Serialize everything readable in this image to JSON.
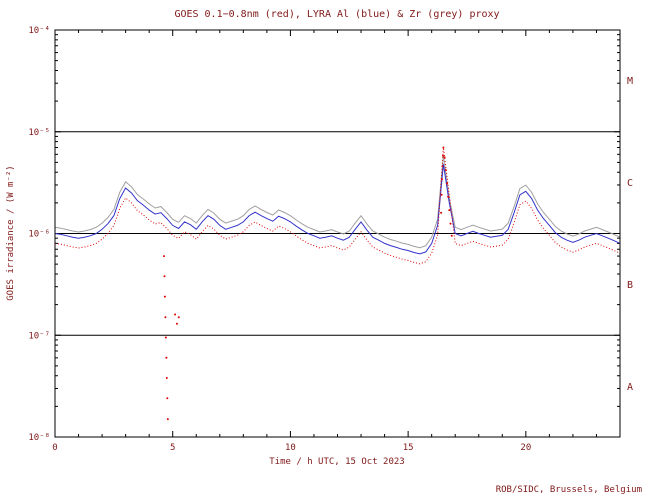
{
  "title": "GOES 0.1−0.8nm (red), LYRA Al (blue) & Zr (grey) proxy",
  "credit": "ROB/SIDC, Brussels, Belgium",
  "chart_data": {
    "type": "line",
    "title": "GOES 0.1−0.8nm (red), LYRA Al (blue) & Zr (grey) proxy",
    "xlabel": "Time / h UTC, 15 Oct 2023",
    "ylabel": "GOES irradiance / (W m⁻²)",
    "x_range": [
      0,
      24
    ],
    "x_step": 0.25,
    "x_major_ticks": [
      0,
      5,
      10,
      15,
      20
    ],
    "x_tick_labels": [
      "0",
      "5",
      "10",
      "15",
      "20"
    ],
    "y_scale": "log",
    "y_range_exp": [
      -8,
      -4
    ],
    "y_tick_exponents": [
      -4,
      -5,
      -6,
      -7,
      -8
    ],
    "y_tick_labels": [
      "10⁻⁴",
      "10⁻⁵",
      "10⁻⁶",
      "10⁻⁷",
      "10⁻⁸"
    ],
    "hlines": [
      1e-05,
      1e-06,
      1e-07
    ],
    "flare_classes": [
      {
        "label": "M",
        "between_exp": [
          -5,
          -4
        ]
      },
      {
        "label": "C",
        "between_exp": [
          -6,
          -5
        ]
      },
      {
        "label": "B",
        "between_exp": [
          -7,
          -6
        ]
      },
      {
        "label": "A",
        "between_exp": [
          -8,
          -7
        ]
      }
    ],
    "legend": "grid off, classes M/C/B/A on right axis",
    "colors": {
      "red": "#dd0000",
      "blue": "#3333cc",
      "grey": "#a0a0a0",
      "axis": "#000000",
      "text": "#801818"
    },
    "values_unit": "×10⁻⁶ W m⁻²",
    "base_values_e6": [
      1.0,
      0.98,
      0.95,
      0.92,
      0.9,
      0.92,
      0.95,
      1.0,
      1.1,
      1.25,
      1.5,
      2.2,
      2.8,
      2.5,
      2.1,
      1.9,
      1.7,
      1.55,
      1.6,
      1.4,
      1.2,
      1.12,
      1.3,
      1.22,
      1.1,
      1.3,
      1.5,
      1.38,
      1.2,
      1.1,
      1.15,
      1.2,
      1.3,
      1.5,
      1.62,
      1.5,
      1.4,
      1.32,
      1.48,
      1.4,
      1.3,
      1.18,
      1.08,
      1.0,
      0.95,
      0.9,
      0.92,
      0.95,
      0.9,
      0.86,
      0.92,
      1.1,
      1.3,
      1.08,
      0.92,
      0.86,
      0.8,
      0.76,
      0.73,
      0.7,
      0.68,
      0.65,
      0.63,
      0.66,
      0.8,
      1.2,
      5.5,
      2.0,
      1.0,
      0.95,
      1.0,
      1.05,
      1.0,
      0.96,
      0.92,
      0.94,
      0.96,
      1.1,
      1.6,
      2.4,
      2.6,
      2.2,
      1.7,
      1.4,
      1.2,
      1.02,
      0.92,
      0.86,
      0.82,
      0.86,
      0.92,
      0.96,
      1.0,
      0.95,
      0.9,
      0.85,
      0.8
    ],
    "series": [
      {
        "name": "LYRA Zr proxy",
        "color_key": "grey",
        "style": "solid",
        "scale": 1.15,
        "overrides": {
          "16.5": 5.8,
          "16.75": 2.2
        }
      },
      {
        "name": "LYRA Al proxy",
        "color_key": "blue",
        "style": "solid",
        "scale": 1.0,
        "overrides": {
          "16.5": 4.8
        }
      },
      {
        "name": "GOES 0.1-0.8nm",
        "color_key": "red",
        "style": "dotted",
        "scale": 0.8,
        "overrides": {
          "16.5": 7.0,
          "16.75": 2.4
        }
      }
    ],
    "red_dots_e6": [
      [
        4.63,
        0.6
      ],
      [
        4.65,
        0.38
      ],
      [
        4.67,
        0.24
      ],
      [
        4.69,
        0.15
      ],
      [
        4.71,
        0.095
      ],
      [
        4.73,
        0.06
      ],
      [
        4.75,
        0.038
      ],
      [
        4.77,
        0.024
      ],
      [
        4.79,
        0.015
      ],
      [
        5.1,
        0.16
      ],
      [
        5.18,
        0.13
      ],
      [
        5.26,
        0.15
      ],
      [
        16.4,
        1.6
      ],
      [
        16.42,
        2.4
      ],
      [
        16.44,
        3.4
      ],
      [
        16.46,
        4.6
      ],
      [
        16.48,
        5.8
      ],
      [
        16.5,
        7.0
      ],
      [
        16.55,
        5.6
      ],
      [
        16.6,
        4.2
      ],
      [
        16.65,
        3.1
      ],
      [
        16.7,
        2.3
      ],
      [
        16.75,
        1.7
      ],
      [
        16.8,
        1.25
      ],
      [
        16.85,
        0.95
      ]
    ]
  }
}
